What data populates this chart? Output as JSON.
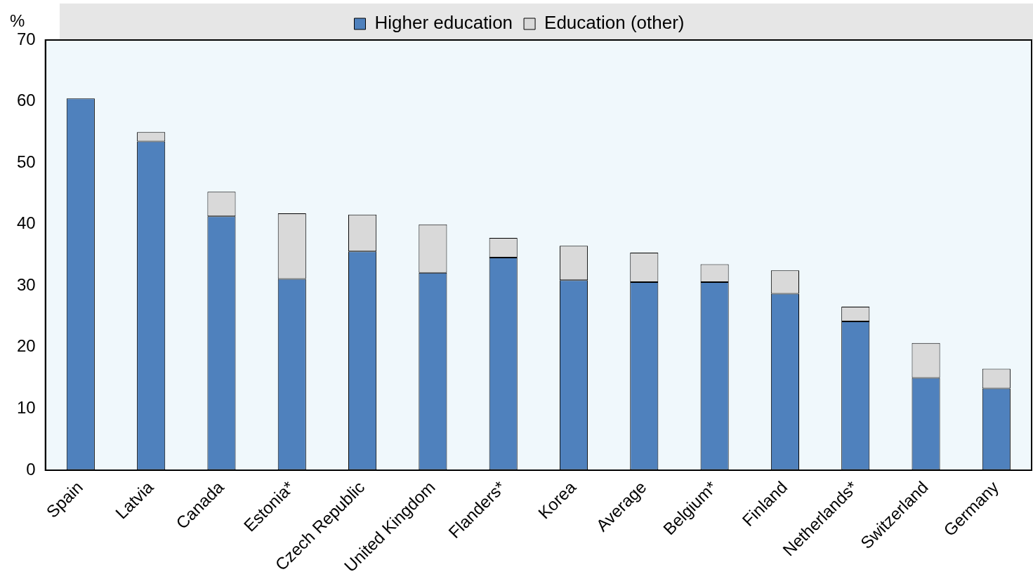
{
  "chart_data": {
    "type": "bar",
    "stacked": true,
    "ylabel": "%",
    "categories": [
      "Spain",
      "Latvia",
      "Canada",
      "Estonia*",
      "Czech Republic",
      "United Kingdom",
      "Flanders*",
      "Korea",
      "Average",
      "Belgium*",
      "Finland",
      "Netherlands*",
      "Switzerland",
      "Germany"
    ],
    "series": [
      {
        "name": "Higher education",
        "color": "#4f81bd",
        "values": [
          60.5,
          53.5,
          41.3,
          31.1,
          35.6,
          32.1,
          34.6,
          30.9,
          30.6,
          30.6,
          28.7,
          24.2,
          15.0,
          13.3
        ]
      },
      {
        "name": "Education (other)",
        "color": "#d9d9d9",
        "values": [
          0,
          1.5,
          4.0,
          10.7,
          6.0,
          7.9,
          3.2,
          5.6,
          4.8,
          2.9,
          3.8,
          2.4,
          5.7,
          3.2
        ]
      }
    ],
    "ylim": [
      0,
      70
    ],
    "yticks": [
      0,
      10,
      20,
      30,
      40,
      50,
      60,
      70
    ],
    "grid": false,
    "legend": "top"
  }
}
